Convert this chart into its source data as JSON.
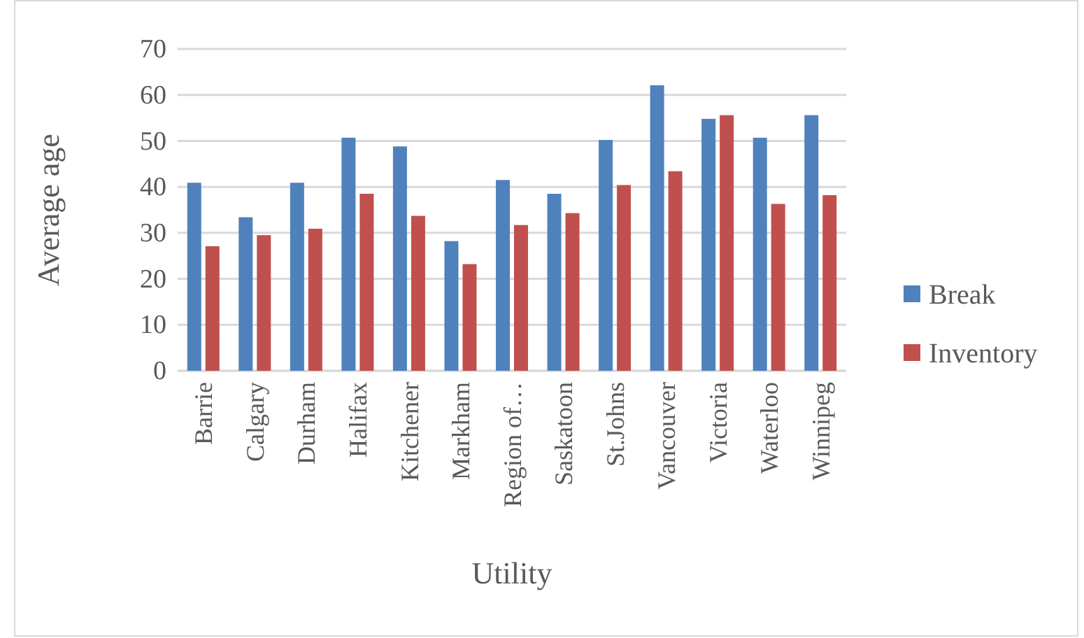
{
  "chart_data": {
    "type": "bar",
    "xlabel": "Utility",
    "ylabel": "Average age",
    "categories": [
      "Barrie",
      "Calgary",
      "Durham",
      "Halifax",
      "Kitchener",
      "Markham",
      "Region of…",
      "Saskatoon",
      "St.Johns",
      "Vancouver",
      "Victoria",
      "Waterloo",
      "Winnipeg"
    ],
    "series": [
      {
        "name": "Break",
        "color": "#4f81bd",
        "values": [
          40.9,
          33.4,
          40.9,
          50.7,
          48.8,
          28.2,
          41.5,
          38.5,
          50.2,
          62.1,
          54.8,
          50.7,
          55.6
        ]
      },
      {
        "name": "Inventory",
        "color": "#c0504d",
        "values": [
          27.1,
          29.5,
          30.9,
          38.5,
          33.7,
          23.2,
          31.7,
          34.3,
          40.4,
          43.4,
          55.6,
          36.3,
          38.2
        ]
      }
    ],
    "ylim": [
      0,
      70
    ],
    "yticks": [
      0,
      10,
      20,
      30,
      40,
      50,
      60,
      70
    ],
    "grid": "y",
    "legend": "right"
  }
}
